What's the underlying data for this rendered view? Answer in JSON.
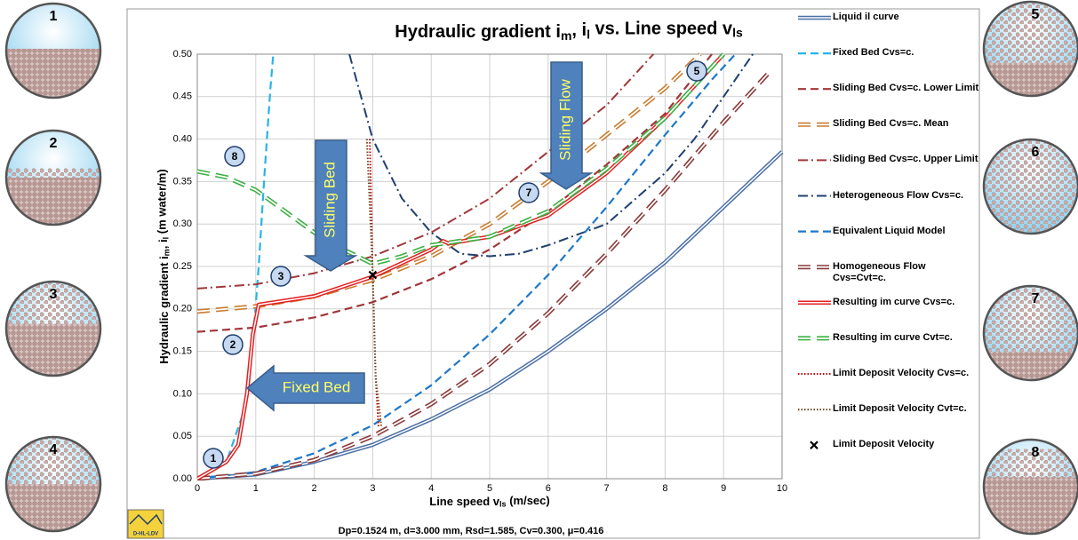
{
  "chart_data": {
    "type": "line",
    "title": [
      "Hydraulic gradient i",
      "m",
      ", i",
      "l",
      " vs. Line speed v",
      "ls"
    ],
    "x_label": [
      "Line speed v",
      "ls",
      " (m/sec)"
    ],
    "y_label": [
      "Hydraulic gradient i",
      "m",
      ", i",
      "l",
      " (m water/m)"
    ],
    "xlim": [
      0,
      10
    ],
    "xticks": [
      0,
      1,
      2,
      3,
      4,
      5,
      6,
      7,
      8,
      9,
      10
    ],
    "ylim": [
      0,
      0.5
    ],
    "yticks": [
      {
        "value": 0,
        "label": "0.00"
      },
      {
        "value": 0.05,
        "label": "0.05"
      },
      {
        "value": 0.1,
        "label": "0.10"
      },
      {
        "value": 0.15,
        "label": "0.15"
      },
      {
        "value": 0.2,
        "label": "0.20"
      },
      {
        "value": 0.25,
        "label": "0.25"
      },
      {
        "value": 0.3,
        "label": "0.30"
      },
      {
        "value": 0.35,
        "label": "0.35"
      },
      {
        "value": 0.4,
        "label": "0.40"
      },
      {
        "value": 0.45,
        "label": "0.45"
      },
      {
        "value": 0.5,
        "label": "0.50"
      }
    ],
    "grid": true,
    "series": [
      {
        "name": "Liquid il curve",
        "color": "#4a6fa5",
        "line": "double",
        "x": [
          0,
          1,
          2,
          3,
          4,
          5,
          6,
          7,
          8,
          9,
          10
        ],
        "values": [
          0,
          0.005,
          0.02,
          0.04,
          0.07,
          0.105,
          0.15,
          0.2,
          0.255,
          0.32,
          0.385
        ]
      },
      {
        "name": "Fixed Bed Cvs=c.",
        "color": "#27b4e6",
        "line": "dashed",
        "x": [
          0,
          0.5,
          0.8,
          0.95,
          1.05,
          1.15,
          1.25,
          1.3
        ],
        "values": [
          0,
          0.02,
          0.08,
          0.16,
          0.25,
          0.36,
          0.46,
          0.5
        ]
      },
      {
        "name": "Sliding Bed Cvs=c. Lower Limit",
        "color": "#a0373a",
        "line": "dashed",
        "x": [
          0,
          1,
          2,
          3,
          4,
          5,
          6,
          7,
          8,
          8.8
        ],
        "values": [
          0.173,
          0.178,
          0.19,
          0.208,
          0.235,
          0.27,
          0.315,
          0.37,
          0.43,
          0.5
        ]
      },
      {
        "name": "Sliding Bed Cvs=c. Mean",
        "color": "#c87c30",
        "line": "double-dashed",
        "x": [
          0,
          1,
          2,
          3,
          4,
          5,
          6,
          7,
          8,
          8.6
        ],
        "values": [
          0.197,
          0.203,
          0.215,
          0.234,
          0.262,
          0.3,
          0.35,
          0.405,
          0.46,
          0.5
        ]
      },
      {
        "name": "Sliding Bed Cvs=c. Upper Limit",
        "color": "#a0373a",
        "line": "dashdot",
        "x": [
          0,
          1,
          2,
          3,
          4,
          5,
          6,
          7,
          7.8
        ],
        "values": [
          0.224,
          0.229,
          0.242,
          0.262,
          0.29,
          0.33,
          0.385,
          0.44,
          0.5
        ]
      },
      {
        "name": "Heterogeneous Flow Cvs=c.",
        "color": "#1f3f6e",
        "line": "dashdot",
        "x": [
          2.6,
          3,
          3.5,
          4,
          4.5,
          5,
          5.5,
          6,
          7,
          8,
          8.5,
          9,
          9.5
        ],
        "values": [
          0.5,
          0.4,
          0.33,
          0.29,
          0.265,
          0.262,
          0.265,
          0.275,
          0.3,
          0.36,
          0.4,
          0.45,
          0.5
        ]
      },
      {
        "name": "Equivalent Liquid Model",
        "color": "#1e78c8",
        "line": "dashed",
        "x": [
          0,
          1,
          2,
          3,
          4,
          5,
          6,
          7,
          8,
          8.8,
          9.2
        ],
        "values": [
          0,
          0.008,
          0.03,
          0.063,
          0.11,
          0.17,
          0.24,
          0.32,
          0.405,
          0.47,
          0.5
        ]
      },
      {
        "name": "Homogeneous Flow Cvs=Cvt=c.",
        "color": "#8b3a3a",
        "line": "double-dashed",
        "x": [
          0,
          1,
          2,
          3,
          4,
          5,
          6,
          7,
          8,
          9,
          9.8
        ],
        "values": [
          0,
          0.006,
          0.022,
          0.05,
          0.088,
          0.135,
          0.195,
          0.265,
          0.34,
          0.42,
          0.48
        ]
      },
      {
        "name": "Resulting im curve Cvs=c.",
        "color": "#e32020",
        "line": "double",
        "x": [
          0,
          0.5,
          0.7,
          0.85,
          0.95,
          1.05,
          2,
          3,
          4,
          4.2,
          4.3,
          5,
          6,
          7,
          8,
          9
        ],
        "values": [
          0,
          0.02,
          0.04,
          0.1,
          0.17,
          0.205,
          0.215,
          0.238,
          0.27,
          0.28,
          0.277,
          0.285,
          0.31,
          0.36,
          0.425,
          0.5
        ]
      },
      {
        "name": "Resulting im curve Cvt=c.",
        "color": "#3cb043",
        "line": "double-dashed",
        "x": [
          0,
          0.5,
          1,
          1.5,
          2,
          2.5,
          3,
          3.5,
          4,
          5,
          6,
          7,
          8,
          9
        ],
        "values": [
          0.362,
          0.355,
          0.34,
          0.315,
          0.29,
          0.27,
          0.253,
          0.262,
          0.275,
          0.285,
          0.315,
          0.365,
          0.425,
          0.5
        ]
      },
      {
        "name": "Limit Deposit Velocity Cvs=c.",
        "color": "#c00000",
        "line": "dotted",
        "x": [
          2.95,
          3,
          3.05,
          3.1
        ],
        "values": [
          0.4,
          0.24,
          0.12,
          0.06
        ]
      },
      {
        "name": "Limit Deposit Velocity Cvt=c.",
        "color": "#6b4a1e",
        "line": "dotted",
        "x": [
          2.9,
          3,
          3.05,
          3.15
        ],
        "values": [
          0.4,
          0.24,
          0.12,
          0.06
        ]
      },
      {
        "name": "Limit Deposit Velocity",
        "color": "#000000",
        "line": "marker",
        "x": [
          3
        ],
        "values": [
          0.24
        ]
      }
    ],
    "markers": [
      "1",
      "2",
      "3",
      "5",
      "7",
      "8"
    ],
    "arrows": [
      "Fixed Bed",
      "Sliding Bed",
      "Sliding Flow"
    ],
    "footnote": "Dp=0.1524 m, d=3.000 mm, Rsd=1.585, Cv=0.300, μ=0.416",
    "logo": "D-HL-LDV"
  },
  "pipes": [
    "1",
    "2",
    "3",
    "4",
    "5",
    "6",
    "7",
    "8"
  ]
}
